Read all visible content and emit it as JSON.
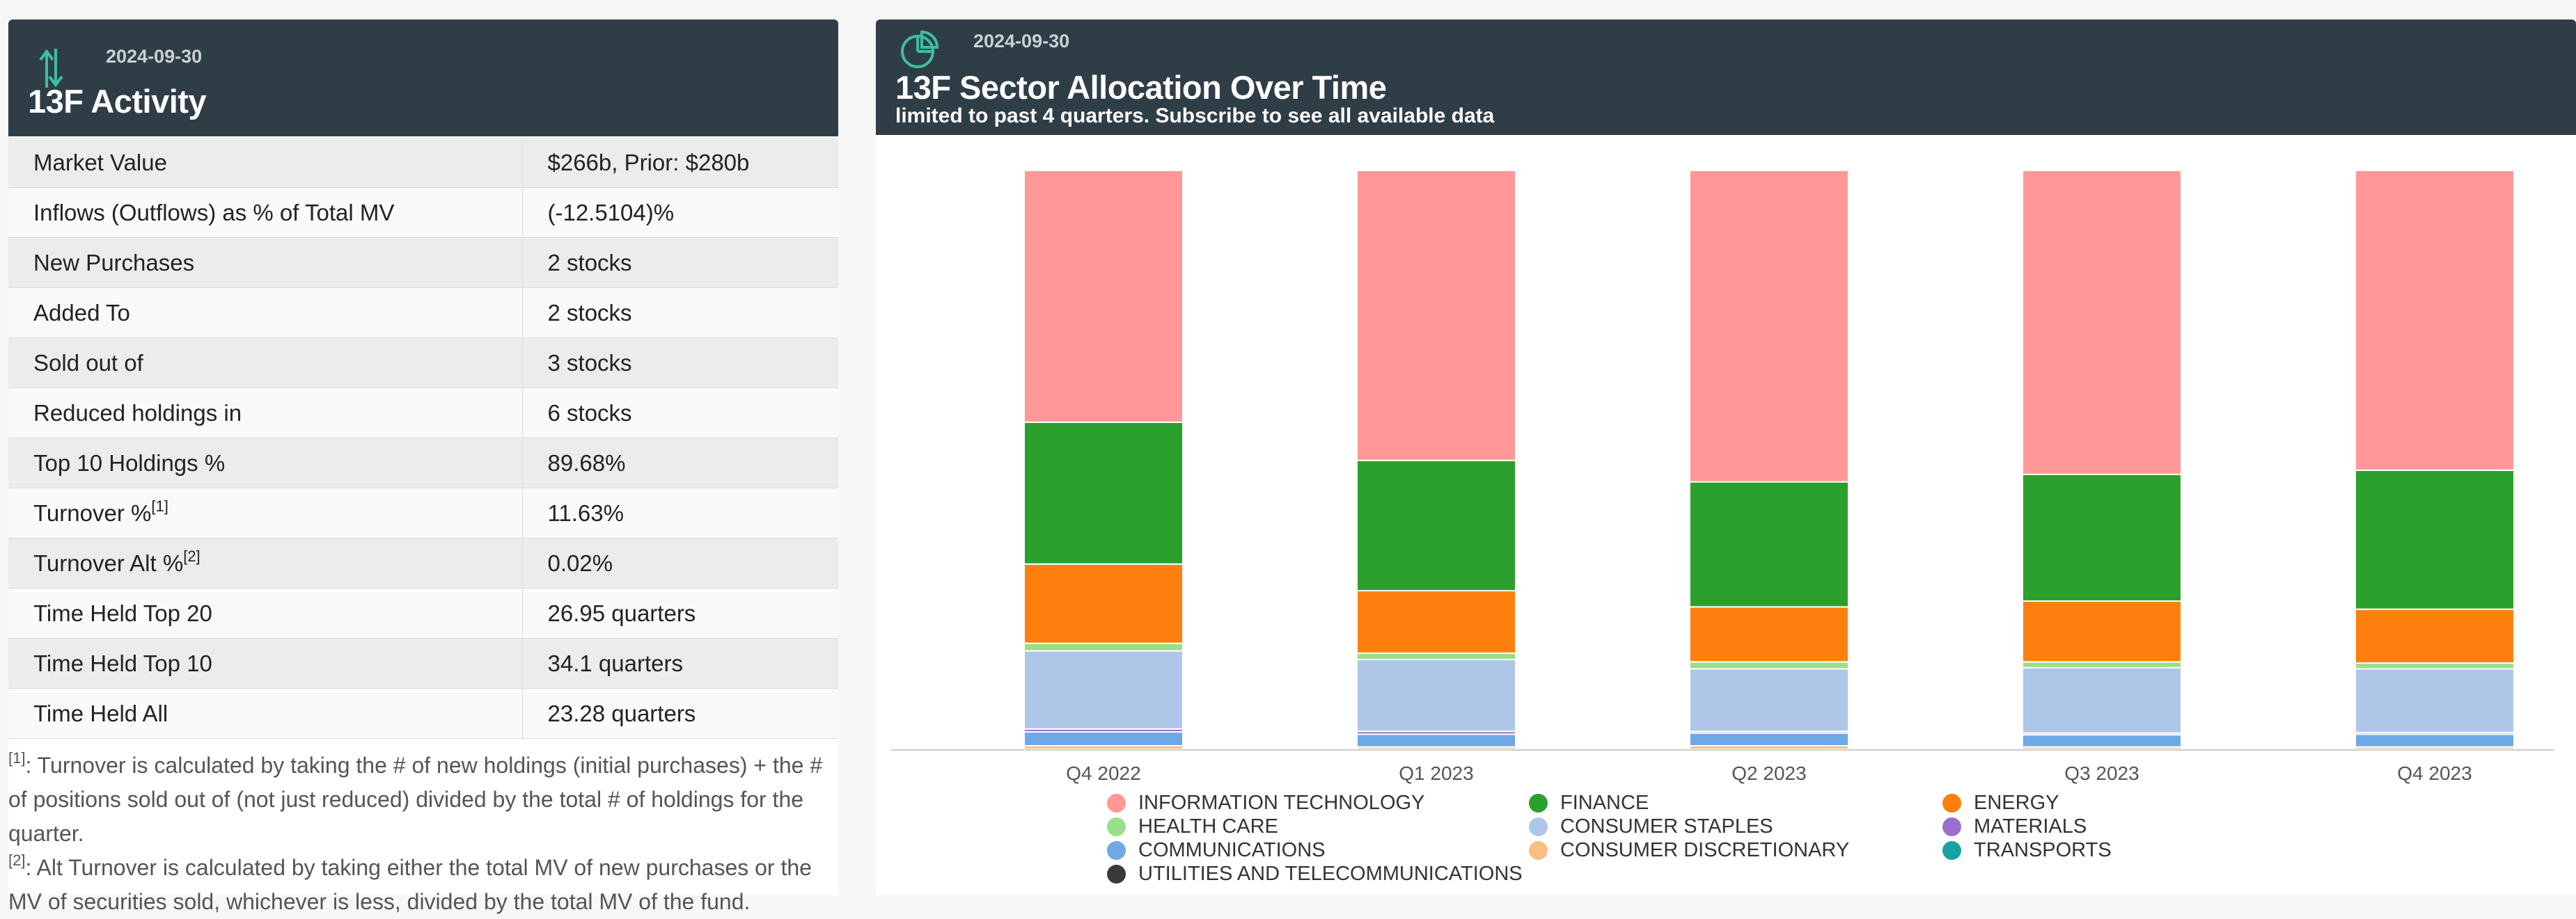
{
  "activity": {
    "date": "2024-09-30",
    "title": "13F Activity",
    "rows": [
      {
        "label": "Market Value",
        "value": "$266b, Prior: $280b"
      },
      {
        "label": "Inflows (Outflows) as % of Total MV",
        "value": "(-12.5104)%"
      },
      {
        "label": "New Purchases",
        "value": "2 stocks"
      },
      {
        "label": "Added To",
        "value": "2 stocks"
      },
      {
        "label": "Sold out of",
        "value": "3 stocks"
      },
      {
        "label": "Reduced holdings in",
        "value": "6 stocks"
      },
      {
        "label": "Top 10 Holdings %",
        "value": "89.68%"
      },
      {
        "label": "Turnover %",
        "sup": "[1]",
        "value": "11.63%"
      },
      {
        "label": "Turnover Alt %",
        "sup": "[2]",
        "value": "0.02%"
      },
      {
        "label": "Time Held Top 20",
        "value": "26.95 quarters"
      },
      {
        "label": "Time Held Top 10",
        "value": "34.1 quarters"
      },
      {
        "label": "Time Held All",
        "value": "23.28 quarters"
      }
    ],
    "footnote1_mark": "[1]",
    "footnote1": ": Turnover is calculated by taking the # of new holdings (initial purchases) + the # of positions sold out of (not just reduced) divided by the total # of holdings for the quarter.",
    "footnote2_mark": "[2]",
    "footnote2": ": Alt Turnover is calculated by taking either the total MV of new purchases or the MV of securities sold, whichever is less, divided by the total MV of the fund."
  },
  "allocation": {
    "date": "2024-09-30",
    "title": "13F Sector Allocation Over Time",
    "subtitle": "limited to past 4 quarters. Subscribe to see all available data"
  },
  "colors": {
    "header_bg": "#2f3d47",
    "negative": "#d42a2a"
  },
  "chart_data": {
    "type": "bar",
    "stacked": true,
    "normalized": true,
    "categories": [
      "Q4 2022",
      "Q1 2023",
      "Q2 2023",
      "Q3 2023",
      "Q4 2023"
    ],
    "ylim": [
      0,
      100
    ],
    "series": [
      {
        "name": "UTILITIES AND TELECOMMUNICATIONS",
        "color": "#3a3a3a",
        "values": [
          0,
          0,
          0,
          0,
          0
        ]
      },
      {
        "name": "TRANSPORTS",
        "color": "#17a2a2",
        "values": [
          0,
          0,
          0,
          0,
          0
        ]
      },
      {
        "name": "CONSUMER DISCRETIONARY",
        "color": "#f8be82",
        "values": [
          0.6,
          0.4,
          0.6,
          0.4,
          0.4
        ]
      },
      {
        "name": "COMMUNICATIONS",
        "color": "#6fa8e6",
        "values": [
          2.4,
          2.2,
          2.2,
          2.1,
          2.2
        ]
      },
      {
        "name": "MATERIALS",
        "color": "#9b6fd0",
        "values": [
          0.5,
          0.5,
          0.3,
          0.3,
          0.3
        ]
      },
      {
        "name": "CONSUMER STAPLES",
        "color": "#aec7e8",
        "values": [
          13.5,
          12.4,
          10.8,
          11.3,
          11.0
        ]
      },
      {
        "name": "HEALTH CARE",
        "color": "#98df8a",
        "values": [
          1.3,
          1.1,
          1.2,
          1.0,
          1.0
        ]
      },
      {
        "name": "ENERGY",
        "color": "#ff7f0e",
        "values": [
          13.7,
          10.8,
          9.5,
          10.5,
          9.3
        ]
      },
      {
        "name": "FINANCE",
        "color": "#2ca02c",
        "values": [
          24.5,
          22.5,
          21.6,
          21.9,
          24.0
        ]
      },
      {
        "name": "INFORMATION TECHNOLOGY",
        "color": "#ff9896",
        "values": [
          43.5,
          50.1,
          53.8,
          52.5,
          51.8
        ]
      }
    ],
    "legend": [
      "INFORMATION TECHNOLOGY",
      "FINANCE",
      "ENERGY",
      "HEALTH CARE",
      "CONSUMER STAPLES",
      "MATERIALS",
      "COMMUNICATIONS",
      "CONSUMER DISCRETIONARY",
      "TRANSPORTS",
      "UTILITIES AND TELECOMMUNICATIONS"
    ],
    "legend_position": "bottom"
  }
}
